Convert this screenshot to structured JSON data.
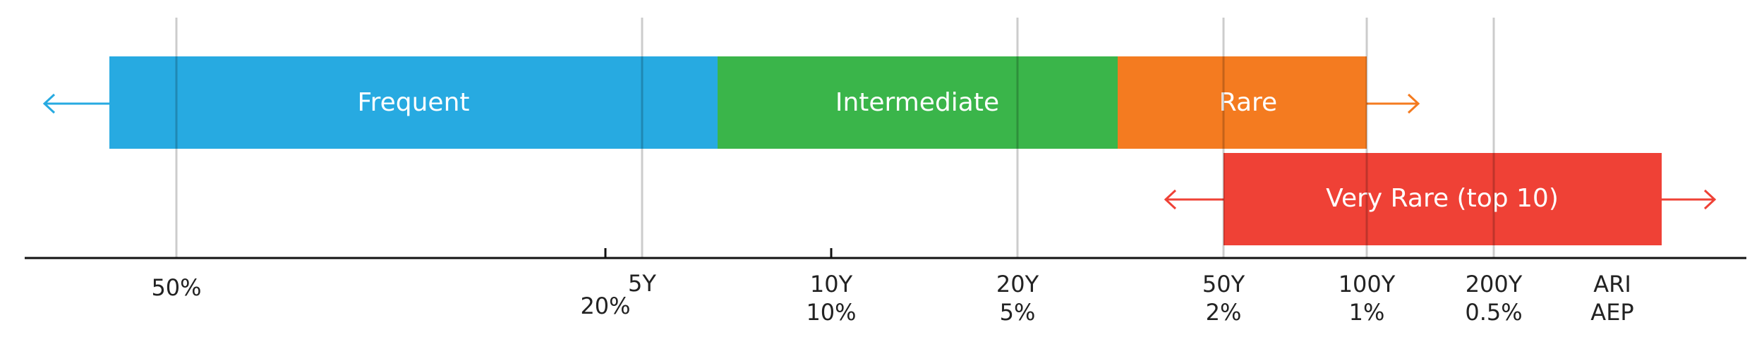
{
  "bands": [
    {
      "id": "frequent",
      "label": "Frequent",
      "color": "#27aae1"
    },
    {
      "id": "intermediate",
      "label": "Intermediate",
      "color": "#3ab54a"
    },
    {
      "id": "rare",
      "label": "Rare",
      "color": "#f47b20"
    },
    {
      "id": "very-rare",
      "label": "Very Rare (top 10)",
      "color": "#ef4136"
    }
  ],
  "axis": {
    "aep_50": "50%",
    "aep_20": "20%",
    "ari_5": "5Y",
    "ari_10": "10Y",
    "aep_10": "10%",
    "ari_20": "20Y",
    "aep_5": "5%",
    "ari_50": "50Y",
    "aep_2": "2%",
    "ari_100": "100Y",
    "aep_1": "1%",
    "ari_200": "200Y",
    "aep_05": "0.5%",
    "legend_ari": "ARI",
    "legend_aep": "AEP"
  },
  "colors": {
    "axis": "#111111",
    "grid": "#c8c8c8",
    "text": "#222222"
  }
}
